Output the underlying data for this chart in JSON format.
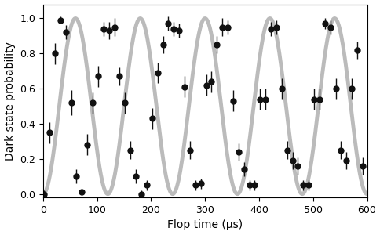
{
  "title": "",
  "xlabel": "Flop time (μs)",
  "ylabel": "Dark state probability",
  "xlim": [
    0,
    600
  ],
  "ylim": [
    -0.02,
    1.08
  ],
  "yticks": [
    0.0,
    0.2,
    0.4,
    0.6,
    0.8,
    1.0
  ],
  "xticks": [
    0,
    100,
    200,
    300,
    400,
    500,
    600
  ],
  "fit_color": "#bbbbbb",
  "fit_linewidth": 3.5,
  "data_color": "#111111",
  "marker_size": 5,
  "period": 120.0,
  "data_points_x": [
    2,
    12,
    22,
    32,
    42,
    52,
    62,
    72,
    82,
    92,
    102,
    112,
    122,
    132,
    142,
    152,
    162,
    172,
    182,
    192,
    202,
    212,
    222,
    232,
    242,
    252,
    262,
    272,
    282,
    292,
    302,
    312,
    322,
    332,
    342,
    352,
    362,
    372,
    382,
    392,
    402,
    412,
    422,
    432,
    442,
    452,
    462,
    472,
    482,
    492,
    502,
    512,
    522,
    532,
    542,
    552,
    562,
    572,
    582,
    592
  ],
  "data_points_y": [
    0.0,
    0.35,
    0.8,
    0.99,
    0.92,
    0.52,
    0.1,
    0.01,
    0.28,
    0.52,
    0.67,
    0.94,
    0.93,
    0.95,
    0.67,
    0.52,
    0.25,
    0.1,
    0.0,
    0.05,
    0.43,
    0.69,
    0.85,
    0.97,
    0.94,
    0.93,
    0.61,
    0.25,
    0.05,
    0.06,
    0.62,
    0.64,
    0.85,
    0.95,
    0.95,
    0.53,
    0.24,
    0.14,
    0.05,
    0.05,
    0.54,
    0.54,
    0.94,
    0.95,
    0.6,
    0.25,
    0.19,
    0.16,
    0.05,
    0.05,
    0.54,
    0.54,
    0.97,
    0.95,
    0.6,
    0.25,
    0.19,
    0.6,
    0.82,
    0.16
  ],
  "data_points_yerr": [
    0.02,
    0.06,
    0.06,
    0.02,
    0.04,
    0.07,
    0.04,
    0.01,
    0.06,
    0.06,
    0.06,
    0.04,
    0.05,
    0.05,
    0.05,
    0.06,
    0.05,
    0.04,
    0.02,
    0.03,
    0.06,
    0.06,
    0.05,
    0.04,
    0.04,
    0.04,
    0.06,
    0.05,
    0.03,
    0.03,
    0.06,
    0.06,
    0.05,
    0.05,
    0.04,
    0.06,
    0.05,
    0.04,
    0.03,
    0.03,
    0.06,
    0.06,
    0.04,
    0.04,
    0.06,
    0.05,
    0.05,
    0.05,
    0.03,
    0.03,
    0.06,
    0.06,
    0.03,
    0.04,
    0.06,
    0.05,
    0.05,
    0.06,
    0.05,
    0.05
  ]
}
